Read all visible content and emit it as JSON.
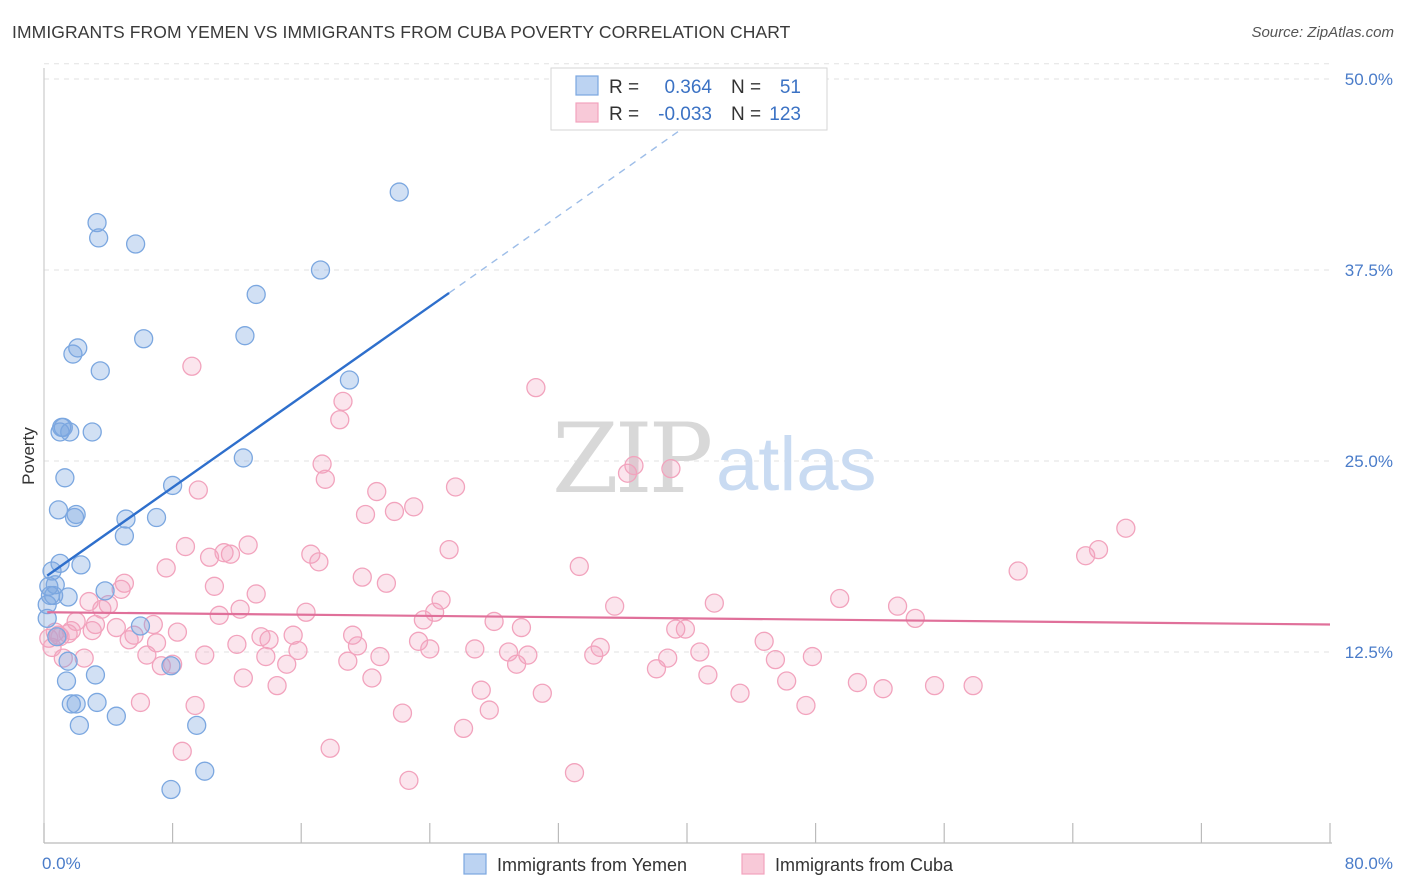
{
  "title": "IMMIGRANTS FROM YEMEN VS IMMIGRANTS FROM CUBA POVERTY CORRELATION CHART",
  "source": "Source: ZipAtlas.com",
  "watermark": {
    "zip": "ZIP",
    "atlas": "atlas"
  },
  "colors": {
    "yemen": "#7ba7e0",
    "yemen_line": "#2e6fcc",
    "cuba": "#f2a3bd",
    "cuba_line": "#e0709a",
    "tick": "#4a7cc9"
  },
  "chart_data": {
    "type": "scatter",
    "xlabel": "",
    "ylabel": "Poverty",
    "xlim": [
      0,
      80
    ],
    "ylim": [
      0,
      50
    ],
    "x_ticks_labels": [
      "0.0%",
      "80.0%"
    ],
    "y_ticks": [
      12.5,
      25.0,
      37.5,
      50.0
    ],
    "y_ticks_labels": [
      "12.5%",
      "25.0%",
      "37.5%",
      "50.0%"
    ],
    "legend": [
      {
        "r_label": "R =",
        "r_value": "0.364",
        "n_label": "N =",
        "n_value": "51"
      },
      {
        "r_label": "R =",
        "r_value": "-0.033",
        "n_label": "N =",
        "n_value": "123"
      }
    ],
    "series": [
      {
        "name": "Immigrants from Yemen",
        "trend": {
          "x0": 0.2,
          "y0": 17.5,
          "x1": 25.2,
          "y1": 36.0,
          "dash_to_x": 42.2,
          "dash_to_y": 48.6
        },
        "points": [
          [
            0.2,
            14.7
          ],
          [
            0.2,
            15.6
          ],
          [
            0.3,
            16.8
          ],
          [
            0.4,
            16.2
          ],
          [
            0.5,
            17.8
          ],
          [
            0.6,
            16.2
          ],
          [
            0.7,
            16.9
          ],
          [
            0.8,
            13.5
          ],
          [
            0.9,
            21.8
          ],
          [
            1.0,
            18.3
          ],
          [
            1.0,
            26.9
          ],
          [
            1.1,
            27.2
          ],
          [
            1.2,
            27.2
          ],
          [
            1.3,
            23.9
          ],
          [
            1.4,
            10.6
          ],
          [
            1.5,
            16.1
          ],
          [
            1.5,
            11.9
          ],
          [
            1.6,
            26.9
          ],
          [
            1.7,
            9.1
          ],
          [
            1.8,
            32.0
          ],
          [
            1.9,
            21.3
          ],
          [
            2.0,
            9.1
          ],
          [
            2.0,
            21.5
          ],
          [
            2.1,
            32.4
          ],
          [
            2.2,
            7.7
          ],
          [
            2.3,
            18.2
          ],
          [
            3.0,
            26.9
          ],
          [
            3.2,
            11.0
          ],
          [
            3.3,
            9.2
          ],
          [
            3.3,
            40.6
          ],
          [
            3.4,
            39.6
          ],
          [
            3.5,
            30.9
          ],
          [
            3.8,
            16.5
          ],
          [
            4.5,
            8.3
          ],
          [
            5.0,
            20.1
          ],
          [
            5.1,
            21.2
          ],
          [
            5.7,
            39.2
          ],
          [
            6.0,
            14.2
          ],
          [
            6.2,
            33.0
          ],
          [
            7.0,
            21.3
          ],
          [
            7.9,
            11.6
          ],
          [
            7.9,
            3.5
          ],
          [
            8.0,
            23.4
          ],
          [
            9.5,
            7.7
          ],
          [
            10.0,
            4.7
          ],
          [
            12.4,
            25.2
          ],
          [
            12.5,
            33.2
          ],
          [
            13.2,
            35.9
          ],
          [
            17.2,
            37.5
          ],
          [
            19.0,
            30.3
          ],
          [
            22.1,
            42.6
          ]
        ]
      },
      {
        "name": "Immigrants from Cuba",
        "trend": {
          "x0": 0.2,
          "y0": 15.1,
          "x1": 80.0,
          "y1": 14.3
        },
        "points": [
          [
            0.3,
            13.4
          ],
          [
            0.5,
            12.8
          ],
          [
            0.7,
            13.8
          ],
          [
            0.9,
            13.6
          ],
          [
            1.0,
            13.5
          ],
          [
            1.2,
            12.1
          ],
          [
            1.5,
            13.7
          ],
          [
            1.7,
            13.9
          ],
          [
            2.0,
            14.5
          ],
          [
            2.5,
            12.1
          ],
          [
            2.8,
            15.8
          ],
          [
            3.0,
            13.9
          ],
          [
            3.2,
            14.3
          ],
          [
            3.6,
            15.3
          ],
          [
            4.0,
            15.6
          ],
          [
            4.5,
            14.1
          ],
          [
            4.8,
            16.6
          ],
          [
            5.0,
            17.0
          ],
          [
            5.3,
            13.3
          ],
          [
            5.6,
            13.6
          ],
          [
            6.0,
            9.2
          ],
          [
            6.4,
            12.3
          ],
          [
            6.8,
            14.3
          ],
          [
            7.0,
            13.1
          ],
          [
            7.3,
            11.6
          ],
          [
            7.6,
            18.0
          ],
          [
            8.0,
            11.7
          ],
          [
            8.3,
            13.8
          ],
          [
            8.6,
            6.0
          ],
          [
            8.8,
            19.4
          ],
          [
            9.2,
            31.2
          ],
          [
            9.4,
            9.0
          ],
          [
            9.6,
            23.1
          ],
          [
            10.0,
            12.3
          ],
          [
            10.3,
            18.7
          ],
          [
            10.6,
            16.8
          ],
          [
            10.9,
            14.9
          ],
          [
            11.2,
            19.0
          ],
          [
            11.6,
            18.9
          ],
          [
            12.0,
            13.0
          ],
          [
            12.2,
            15.3
          ],
          [
            12.4,
            10.8
          ],
          [
            12.7,
            19.5
          ],
          [
            13.2,
            16.3
          ],
          [
            13.5,
            13.5
          ],
          [
            13.8,
            12.2
          ],
          [
            14.0,
            13.3
          ],
          [
            14.5,
            10.3
          ],
          [
            15.1,
            11.7
          ],
          [
            15.5,
            13.6
          ],
          [
            15.8,
            12.6
          ],
          [
            16.3,
            15.1
          ],
          [
            16.6,
            18.9
          ],
          [
            17.1,
            18.4
          ],
          [
            17.3,
            24.8
          ],
          [
            17.5,
            23.8
          ],
          [
            17.8,
            6.2
          ],
          [
            18.4,
            27.7
          ],
          [
            18.6,
            28.9
          ],
          [
            18.9,
            11.9
          ],
          [
            19.2,
            13.6
          ],
          [
            19.5,
            12.9
          ],
          [
            19.8,
            17.4
          ],
          [
            20.0,
            21.5
          ],
          [
            20.4,
            10.8
          ],
          [
            20.7,
            23.0
          ],
          [
            20.9,
            12.2
          ],
          [
            21.3,
            17.0
          ],
          [
            21.8,
            21.7
          ],
          [
            22.3,
            8.5
          ],
          [
            22.7,
            4.1
          ],
          [
            23.0,
            22.0
          ],
          [
            23.3,
            13.2
          ],
          [
            23.6,
            14.6
          ],
          [
            24.0,
            12.7
          ],
          [
            24.3,
            15.1
          ],
          [
            24.7,
            15.9
          ],
          [
            25.2,
            19.2
          ],
          [
            25.6,
            23.3
          ],
          [
            26.1,
            7.5
          ],
          [
            26.8,
            12.7
          ],
          [
            27.2,
            10.0
          ],
          [
            27.7,
            8.7
          ],
          [
            28.0,
            14.5
          ],
          [
            28.9,
            12.5
          ],
          [
            29.4,
            11.7
          ],
          [
            29.7,
            14.1
          ],
          [
            30.1,
            12.3
          ],
          [
            30.6,
            29.8
          ],
          [
            31.0,
            9.8
          ],
          [
            33.0,
            4.6
          ],
          [
            33.3,
            18.1
          ],
          [
            34.2,
            12.3
          ],
          [
            34.6,
            12.8
          ],
          [
            35.5,
            15.5
          ],
          [
            36.3,
            24.2
          ],
          [
            36.7,
            24.7
          ],
          [
            38.1,
            11.4
          ],
          [
            38.8,
            12.1
          ],
          [
            39.0,
            24.5
          ],
          [
            39.3,
            14.0
          ],
          [
            39.9,
            14.0
          ],
          [
            40.8,
            12.5
          ],
          [
            41.3,
            11.0
          ],
          [
            41.7,
            15.7
          ],
          [
            43.3,
            9.8
          ],
          [
            44.8,
            13.2
          ],
          [
            45.5,
            12.0
          ],
          [
            46.2,
            10.6
          ],
          [
            47.4,
            9.0
          ],
          [
            47.8,
            12.2
          ],
          [
            49.5,
            16.0
          ],
          [
            50.6,
            10.5
          ],
          [
            52.2,
            10.1
          ],
          [
            53.1,
            15.5
          ],
          [
            54.2,
            14.7
          ],
          [
            55.4,
            10.3
          ],
          [
            57.8,
            10.3
          ],
          [
            60.6,
            17.8
          ],
          [
            64.8,
            18.8
          ],
          [
            65.6,
            19.2
          ],
          [
            67.3,
            20.6
          ]
        ]
      }
    ],
    "grid": "horizontal-dashed",
    "legend_placement": "top-center"
  },
  "bottom_legend": [
    {
      "label": "Immigrants from Yemen"
    },
    {
      "label": "Immigrants from Cuba"
    }
  ]
}
